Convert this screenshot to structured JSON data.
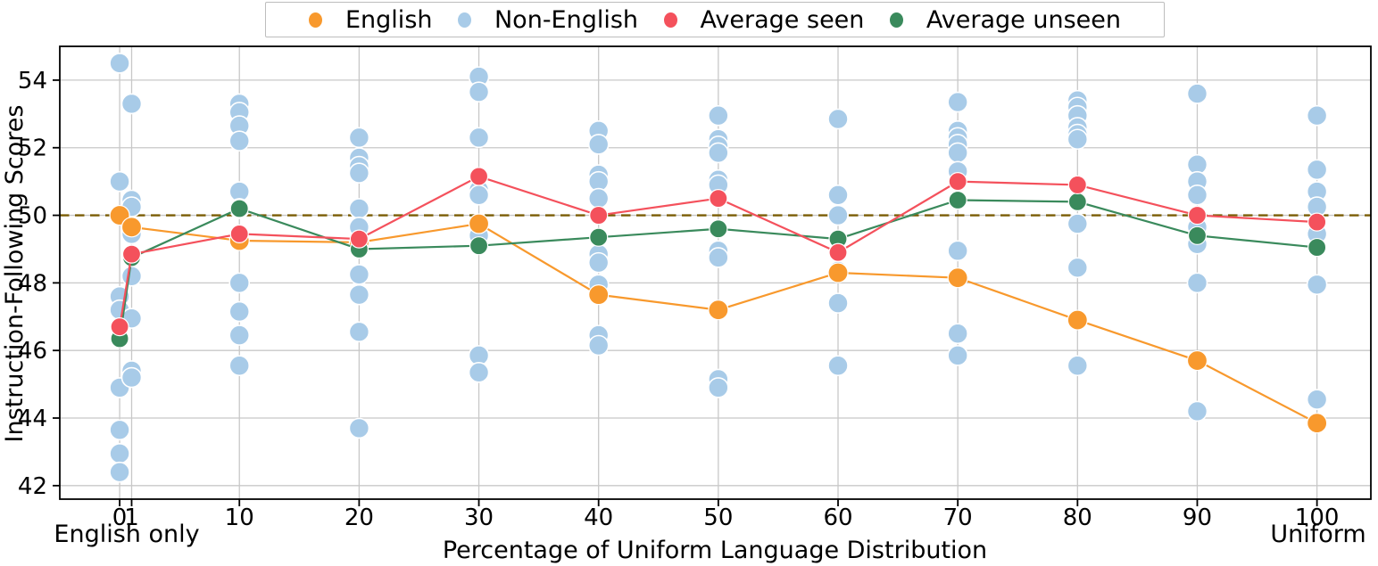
{
  "chart_data": {
    "type": "scatter",
    "title": "",
    "xlabel": "Percentage of Uniform Language Distribution",
    "ylabel": "Instruction-Following Scores",
    "xlim": [
      -5,
      104.5
    ],
    "ylim": [
      41.6,
      55.0
    ],
    "grid": true,
    "x_ticks": [
      0,
      1,
      10,
      20,
      30,
      40,
      50,
      60,
      70,
      80,
      90,
      100
    ],
    "x_tick_labels": [
      "0",
      "1",
      "10",
      "20",
      "30",
      "40",
      "50",
      "60",
      "70",
      "80",
      "90",
      "100"
    ],
    "y_ticks": [
      42,
      44,
      46,
      48,
      50,
      52,
      54
    ],
    "y_tick_labels": [
      "42",
      "44",
      "46",
      "48",
      "50",
      "52",
      "54"
    ],
    "x_secondary_labels": [
      {
        "x": 0.5,
        "text": "English only"
      },
      {
        "x": 100,
        "text": "Uniform"
      }
    ],
    "reference_line": {
      "y": 50,
      "color": "#7a5c04",
      "style": "dashed"
    },
    "x": [
      0,
      1,
      10,
      20,
      30,
      40,
      50,
      60,
      70,
      80,
      90,
      100
    ],
    "series": [
      {
        "name": "English",
        "color": "#f8992d",
        "marker_radius": 11,
        "values": [
          50.0,
          49.65,
          49.25,
          49.2,
          49.75,
          47.65,
          47.2,
          48.3,
          48.15,
          46.9,
          45.7,
          43.85
        ]
      },
      {
        "name": "Average unseen",
        "color": "#3a8a5c",
        "marker_radius": 10,
        "values": [
          46.35,
          48.75,
          50.2,
          49.0,
          49.1,
          49.35,
          49.6,
          49.3,
          50.45,
          50.4,
          49.4,
          49.05
        ]
      },
      {
        "name": "Average seen",
        "color": "#f4515c",
        "marker_radius": 10,
        "values": [
          46.7,
          48.85,
          49.45,
          49.3,
          51.15,
          50.0,
          50.5,
          48.9,
          51.0,
          50.9,
          50.0,
          49.8
        ]
      }
    ],
    "scatter": {
      "name": "Non-English",
      "color": "#a8cbe8",
      "marker_radius": 11,
      "points": [
        {
          "x": 0,
          "ys": [
            54.5,
            51.0,
            47.6,
            47.2,
            44.9,
            43.65,
            42.95,
            42.4
          ]
        },
        {
          "x": 1,
          "ys": [
            53.3,
            50.45,
            50.25,
            49.45,
            48.8,
            48.2,
            46.95,
            45.4,
            45.2
          ]
        },
        {
          "x": 10,
          "ys": [
            53.3,
            53.05,
            52.65,
            52.2,
            50.7,
            50.2,
            48.0,
            47.15,
            46.45,
            45.55
          ]
        },
        {
          "x": 20,
          "ys": [
            52.3,
            51.7,
            51.45,
            51.25,
            50.2,
            49.65,
            48.25,
            47.65,
            46.55,
            43.7
          ]
        },
        {
          "x": 30,
          "ys": [
            54.1,
            53.65,
            52.3,
            50.75,
            50.6,
            49.5,
            49.4,
            45.85,
            45.35
          ]
        },
        {
          "x": 40,
          "ys": [
            52.5,
            52.1,
            51.2,
            51.0,
            50.5,
            48.85,
            48.6,
            47.95,
            46.45,
            46.15
          ]
        },
        {
          "x": 50,
          "ys": [
            52.95,
            52.25,
            52.05,
            51.85,
            51.05,
            50.9,
            48.95,
            48.75,
            45.15,
            44.9
          ]
        },
        {
          "x": 60,
          "ys": [
            52.85,
            50.6,
            50.0,
            48.35,
            47.4,
            45.55
          ]
        },
        {
          "x": 70,
          "ys": [
            53.35,
            52.5,
            52.3,
            52.1,
            51.85,
            51.3,
            48.95,
            46.5,
            45.85
          ]
        },
        {
          "x": 80,
          "ys": [
            53.4,
            53.2,
            52.95,
            52.6,
            52.4,
            52.25,
            49.75,
            48.45,
            45.55
          ]
        },
        {
          "x": 90,
          "ys": [
            53.6,
            51.5,
            51.0,
            50.6,
            49.65,
            49.15,
            48.0,
            44.2
          ]
        },
        {
          "x": 100,
          "ys": [
            52.95,
            51.35,
            50.7,
            50.25,
            49.45,
            47.95,
            44.55
          ]
        }
      ]
    },
    "colors": {
      "grid": "#c8c8c8",
      "spine": "#000000",
      "tick_text": "#000000"
    }
  },
  "legend": {
    "items": [
      {
        "label": "English",
        "color": "#f8992d"
      },
      {
        "label": "Non-English",
        "color": "#a8cbe8"
      },
      {
        "label": "Average seen",
        "color": "#f4515c"
      },
      {
        "label": "Average unseen",
        "color": "#3a8a5c"
      }
    ]
  }
}
